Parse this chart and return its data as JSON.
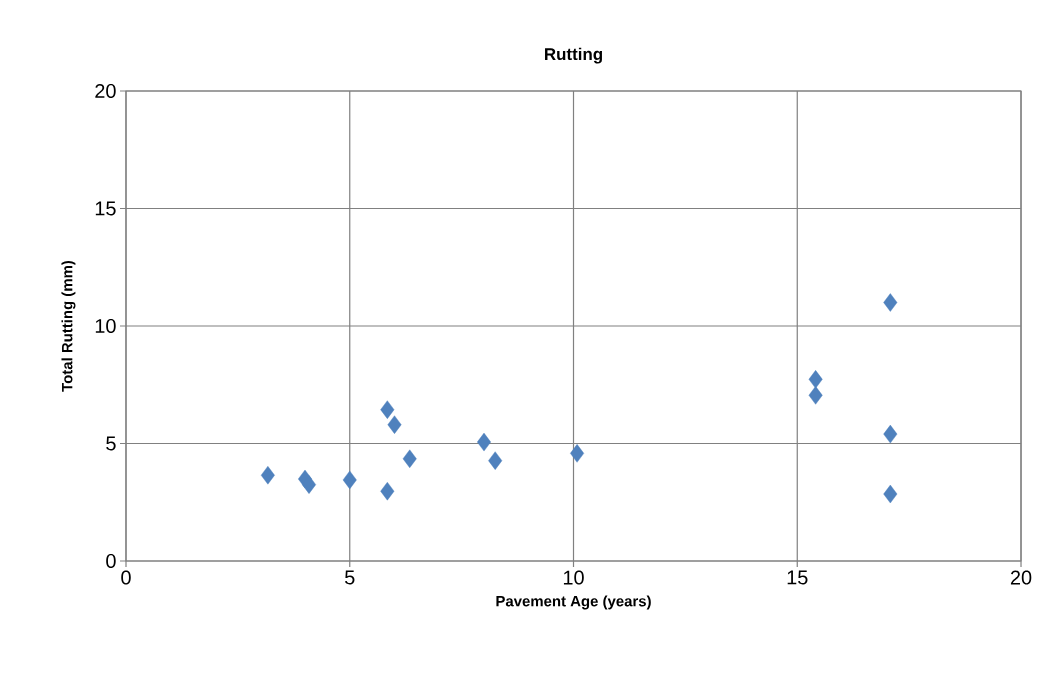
{
  "chart_data": {
    "type": "scatter",
    "title": "Rutting",
    "xlabel": "Pavement Age (years)",
    "ylabel": "Total Rutting (mm)",
    "x": [
      3.17,
      4.0,
      4.09,
      5.0,
      5.84,
      6.0,
      5.84,
      6.34,
      8.0,
      8.25,
      10.08,
      17.08,
      15.41,
      15.41,
      17.08,
      17.08
    ],
    "values": [
      3.65,
      3.49,
      3.25,
      3.45,
      6.44,
      5.8,
      2.97,
      4.35,
      5.06,
      4.27,
      4.58,
      11.0,
      7.73,
      7.05,
      5.4,
      2.85
    ],
    "color": "#4f81bd",
    "marker": "diamond",
    "xlim": [
      0,
      20
    ],
    "ylim": [
      0,
      20
    ],
    "xticks": [
      0,
      5,
      10,
      15,
      20
    ],
    "yticks": [
      0,
      5,
      10,
      15,
      20
    ],
    "grid": true
  }
}
